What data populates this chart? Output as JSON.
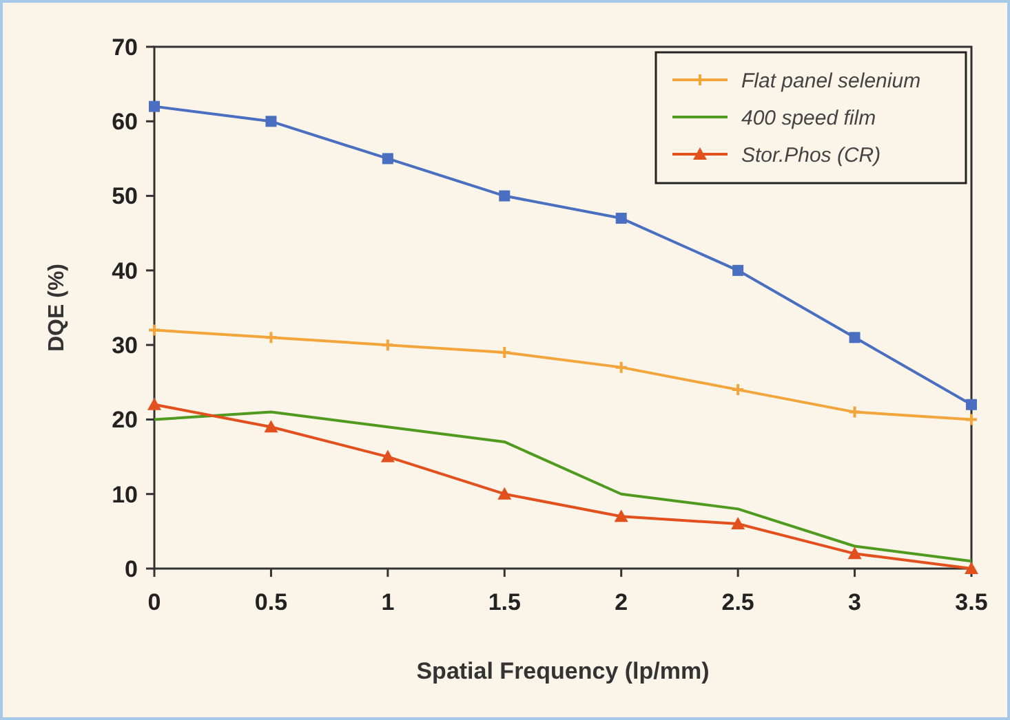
{
  "chart_data": {
    "type": "line",
    "xlabel": "Spatial Frequency (lp/mm)",
    "ylabel": "DQE  (%)",
    "x": [
      0,
      0.5,
      1,
      1.5,
      2,
      2.5,
      3,
      3.5
    ],
    "xlim": [
      0,
      3.5
    ],
    "xticks": [
      0,
      0.5,
      1,
      1.5,
      2,
      2.5,
      3,
      3.5
    ],
    "ylim": [
      0,
      70
    ],
    "yticks": [
      0,
      10,
      20,
      30,
      40,
      50,
      60,
      70
    ],
    "grid": false,
    "legend": "top right",
    "series": [
      {
        "color": "#4a6fc0",
        "marker": "square",
        "values": [
          62,
          60,
          55,
          50,
          47,
          40,
          31,
          22
        ]
      },
      {
        "name": "Flat panel selenium",
        "color": "#f2a53a",
        "marker": "cross",
        "values": [
          32,
          31,
          30,
          29,
          27,
          24,
          21,
          20
        ]
      },
      {
        "name": "400 speed film",
        "color": "#4f9a1f",
        "marker": "none",
        "values": [
          20,
          21,
          19,
          17,
          10,
          8,
          3,
          1
        ]
      },
      {
        "name": "Stor.Phos (CR)",
        "color": "#e2501e",
        "marker": "triangle",
        "values": [
          22,
          19,
          15,
          10,
          7,
          6,
          2,
          0
        ]
      }
    ]
  }
}
